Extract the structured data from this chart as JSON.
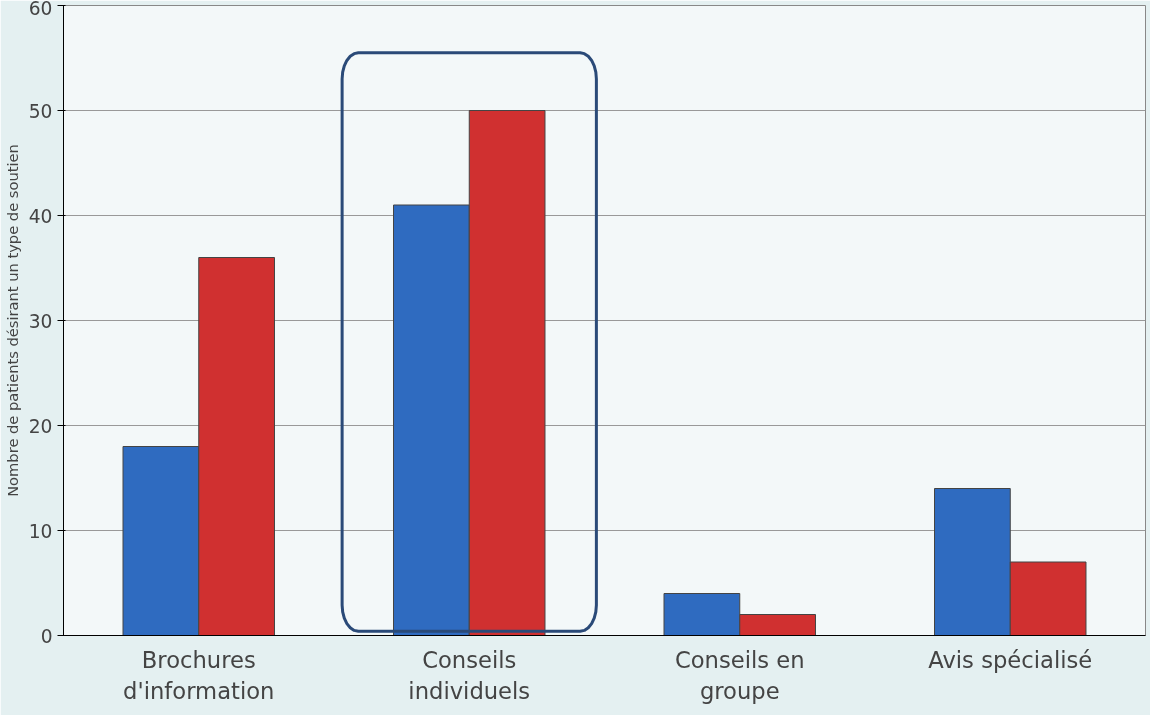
{
  "chart_data": {
    "type": "bar",
    "ylabel": "Nombre de patients désirant un type de soutien",
    "categories": [
      "Brochures d'information",
      "Conseils individuels",
      "Conseils en groupe",
      "Avis spécialisé"
    ],
    "series": [
      {
        "color": "#2f6bc0",
        "values": [
          18,
          41,
          4,
          14
        ]
      },
      {
        "color": "#d03030",
        "values": [
          36,
          50,
          2,
          7
        ]
      }
    ],
    "ylim": [
      0,
      60
    ],
    "yticks": [
      0,
      10,
      20,
      30,
      40,
      50,
      60
    ],
    "grid": "y"
  }
}
